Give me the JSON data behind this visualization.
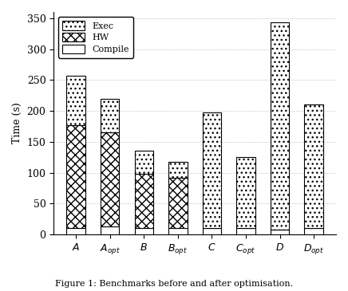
{
  "categories": [
    "$A$",
    "$A_{opt}$",
    "$B$",
    "$B_{opt}$",
    "$C$",
    "$C_{opt}$",
    "$D$",
    "$D_{opt}$"
  ],
  "compile": [
    10,
    13,
    10,
    10,
    10,
    10,
    8,
    10
  ],
  "hw": [
    167,
    152,
    88,
    82,
    0,
    0,
    0,
    0
  ],
  "exec": [
    80,
    55,
    37,
    26,
    188,
    115,
    335,
    200
  ],
  "ylabel": "Time (s)",
  "ylim": [
    0,
    360
  ],
  "yticks": [
    0,
    50,
    100,
    150,
    200,
    250,
    300,
    350
  ],
  "figure_caption": "Figure 1: Benchmarks before and after optimisation.",
  "bar_width": 0.55,
  "grid_color": "#bbbbbb"
}
